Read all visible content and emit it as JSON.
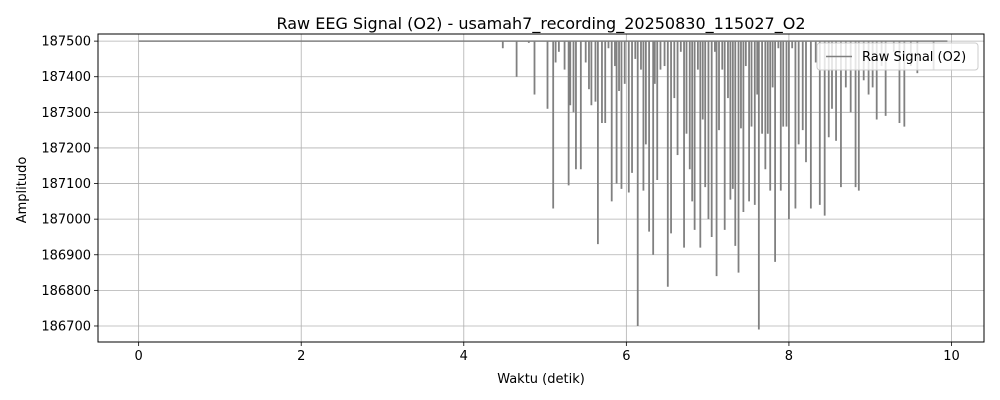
{
  "chart_data": {
    "type": "line",
    "title": "Raw EEG Signal (O2) - usamah7_recording_20250830_115027_O2",
    "xlabel": "Waktu (detik)",
    "ylabel": "Amplitudo",
    "xlim": [
      -0.5,
      10.4
    ],
    "ylim": [
      186655,
      187520
    ],
    "xticks": [
      0,
      2,
      4,
      6,
      8,
      10
    ],
    "xtick_labels": [
      "0",
      "2",
      "4",
      "6",
      "8",
      "10"
    ],
    "yticks": [
      186700,
      186800,
      186900,
      187000,
      187100,
      187200,
      187300,
      187400,
      187500
    ],
    "ytick_labels": [
      "186700",
      "186800",
      "186900",
      "187000",
      "187100",
      "187200",
      "187300",
      "187400",
      "187500"
    ],
    "grid": true,
    "legend_position": "top-right",
    "baseline": 187500,
    "series": [
      {
        "name": "Raw Signal (O2)",
        "color": "#808080",
        "spikes": [
          [
            4.48,
            187480
          ],
          [
            4.65,
            187400
          ],
          [
            4.8,
            187495
          ],
          [
            4.87,
            187350
          ],
          [
            5.03,
            187310
          ],
          [
            5.1,
            187030
          ],
          [
            5.13,
            187440
          ],
          [
            5.17,
            187470
          ],
          [
            5.24,
            187420
          ],
          [
            5.29,
            187095
          ],
          [
            5.31,
            187320
          ],
          [
            5.35,
            187300
          ],
          [
            5.38,
            187140
          ],
          [
            5.44,
            187140
          ],
          [
            5.5,
            187440
          ],
          [
            5.54,
            187365
          ],
          [
            5.57,
            187320
          ],
          [
            5.62,
            187330
          ],
          [
            5.65,
            186930
          ],
          [
            5.7,
            187270
          ],
          [
            5.74,
            187270
          ],
          [
            5.78,
            187480
          ],
          [
            5.82,
            187050
          ],
          [
            5.86,
            187430
          ],
          [
            5.88,
            187100
          ],
          [
            5.91,
            187360
          ],
          [
            5.94,
            187085
          ],
          [
            5.98,
            187380
          ],
          [
            6.03,
            187075
          ],
          [
            6.07,
            187130
          ],
          [
            6.11,
            187450
          ],
          [
            6.14,
            186700
          ],
          [
            6.18,
            187420
          ],
          [
            6.21,
            187080
          ],
          [
            6.24,
            187210
          ],
          [
            6.28,
            186965
          ],
          [
            6.33,
            186900
          ],
          [
            6.35,
            187380
          ],
          [
            6.38,
            187110
          ],
          [
            6.42,
            187420
          ],
          [
            6.47,
            187430
          ],
          [
            6.51,
            186810
          ],
          [
            6.55,
            186960
          ],
          [
            6.59,
            187340
          ],
          [
            6.63,
            187180
          ],
          [
            6.67,
            187470
          ],
          [
            6.71,
            186920
          ],
          [
            6.74,
            187240
          ],
          [
            6.78,
            187140
          ],
          [
            6.81,
            187050
          ],
          [
            6.84,
            186970
          ],
          [
            6.88,
            187420
          ],
          [
            6.91,
            186920
          ],
          [
            6.94,
            187280
          ],
          [
            6.97,
            187090
          ],
          [
            7.01,
            187000
          ],
          [
            7.05,
            186950
          ],
          [
            7.09,
            187470
          ],
          [
            7.11,
            186840
          ],
          [
            7.14,
            187250
          ],
          [
            7.18,
            187420
          ],
          [
            7.21,
            186970
          ],
          [
            7.25,
            187340
          ],
          [
            7.28,
            187055
          ],
          [
            7.31,
            187085
          ],
          [
            7.34,
            186925
          ],
          [
            7.38,
            186850
          ],
          [
            7.41,
            187255
          ],
          [
            7.44,
            187020
          ],
          [
            7.47,
            187430
          ],
          [
            7.51,
            187050
          ],
          [
            7.54,
            187260
          ],
          [
            7.58,
            187040
          ],
          [
            7.61,
            187350
          ],
          [
            7.63,
            186690
          ],
          [
            7.67,
            187240
          ],
          [
            7.71,
            187140
          ],
          [
            7.74,
            187240
          ],
          [
            7.77,
            187080
          ],
          [
            7.8,
            187370
          ],
          [
            7.83,
            186880
          ],
          [
            7.87,
            187480
          ],
          [
            7.9,
            187080
          ],
          [
            7.93,
            187260
          ],
          [
            7.97,
            187260
          ],
          [
            8.0,
            187000
          ],
          [
            8.04,
            187480
          ],
          [
            8.08,
            187030
          ],
          [
            8.12,
            187210
          ],
          [
            8.17,
            187250
          ],
          [
            8.21,
            187160
          ],
          [
            8.27,
            187030
          ],
          [
            8.33,
            187440
          ],
          [
            8.38,
            187040
          ],
          [
            8.44,
            187010
          ],
          [
            8.49,
            187230
          ],
          [
            8.53,
            187310
          ],
          [
            8.58,
            187220
          ],
          [
            8.64,
            187090
          ],
          [
            8.7,
            187370
          ],
          [
            8.76,
            187300
          ],
          [
            8.82,
            187090
          ],
          [
            8.86,
            187080
          ],
          [
            8.92,
            187390
          ],
          [
            8.98,
            187350
          ],
          [
            9.03,
            187370
          ],
          [
            9.08,
            187280
          ],
          [
            9.14,
            187430
          ],
          [
            9.19,
            187290
          ],
          [
            9.29,
            187470
          ],
          [
            9.36,
            187270
          ],
          [
            9.42,
            187260
          ],
          [
            9.5,
            187430
          ],
          [
            9.58,
            187410
          ],
          [
            9.78,
            187420
          ]
        ],
        "x_start": 0.0,
        "x_end": 9.95
      }
    ]
  }
}
